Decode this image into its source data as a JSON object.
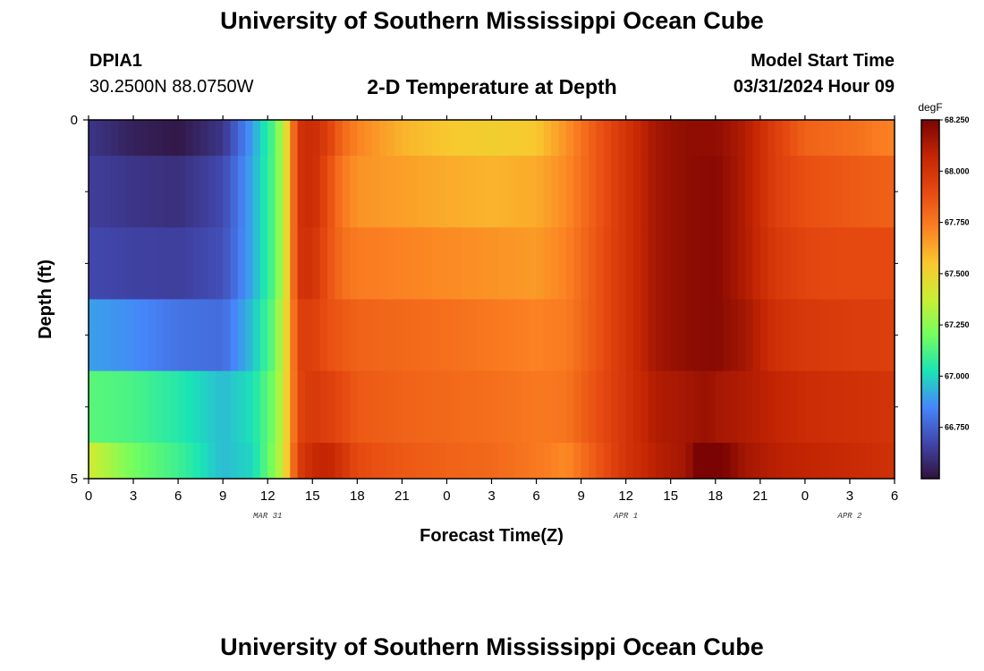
{
  "header": {
    "title": "University of Southern Mississippi Ocean Cube",
    "station_id": "DPIA1",
    "coordinates": "30.2500N  88.0750W",
    "subtitle": "2-D Temperature at Depth",
    "start_label": "Model Start Time",
    "start_value": "03/31/2024 Hour 09"
  },
  "footer": {
    "title": "University of Southern Mississippi Ocean Cube"
  },
  "chart_data": {
    "type": "heatmap",
    "title": "2-D Temperature at Depth",
    "xlabel": "Forecast Time(Z)",
    "ylabel": "Depth (ft)",
    "x_hours": [
      0,
      54
    ],
    "x_ticks": [
      {
        "hour": 0,
        "label": "0"
      },
      {
        "hour": 3,
        "label": "3"
      },
      {
        "hour": 6,
        "label": "6"
      },
      {
        "hour": 9,
        "label": "9"
      },
      {
        "hour": 12,
        "label": "12"
      },
      {
        "hour": 15,
        "label": "15"
      },
      {
        "hour": 18,
        "label": "18"
      },
      {
        "hour": 21,
        "label": "21"
      },
      {
        "hour": 24,
        "label": "0"
      },
      {
        "hour": 27,
        "label": "3"
      },
      {
        "hour": 30,
        "label": "6"
      },
      {
        "hour": 33,
        "label": "9"
      },
      {
        "hour": 36,
        "label": "12"
      },
      {
        "hour": 39,
        "label": "15"
      },
      {
        "hour": 42,
        "label": "18"
      },
      {
        "hour": 45,
        "label": "21"
      },
      {
        "hour": 48,
        "label": "0"
      },
      {
        "hour": 51,
        "label": "3"
      },
      {
        "hour": 54,
        "label": "6"
      }
    ],
    "date_labels": [
      {
        "hour": 12,
        "label": "MAR 31"
      },
      {
        "hour": 36,
        "label": "APR 1"
      },
      {
        "hour": 51,
        "label": "APR 2"
      }
    ],
    "ylim": [
      0,
      5
    ],
    "y_tick_labels": [
      {
        "depth": 0,
        "label": "0"
      },
      {
        "depth": 5,
        "label": "5"
      }
    ],
    "y_minor_ticks": [
      1,
      2,
      3,
      4
    ],
    "depth_layers": [
      {
        "from": 0.0,
        "to": 0.5,
        "profile": [
          [
            0,
            66.62
          ],
          [
            3,
            66.55
          ],
          [
            6,
            66.52
          ],
          [
            9,
            66.62
          ],
          [
            11,
            66.9
          ],
          [
            12.5,
            67.15
          ],
          [
            13,
            67.35
          ],
          [
            13.5,
            67.6
          ],
          [
            14,
            68.0
          ],
          [
            15,
            68.05
          ],
          [
            16,
            67.95
          ],
          [
            17,
            67.8
          ],
          [
            18,
            67.72
          ],
          [
            21,
            67.6
          ],
          [
            24,
            67.55
          ],
          [
            27,
            67.52
          ],
          [
            30,
            67.55
          ],
          [
            32,
            67.68
          ],
          [
            34,
            67.85
          ],
          [
            36,
            68.0
          ],
          [
            38,
            68.15
          ],
          [
            40,
            68.2
          ],
          [
            42,
            68.2
          ],
          [
            44,
            68.12
          ],
          [
            46,
            67.95
          ],
          [
            48,
            67.82
          ],
          [
            51,
            67.78
          ],
          [
            54,
            67.72
          ]
        ]
      },
      {
        "from": 0.5,
        "to": 1.5,
        "profile": [
          [
            0,
            66.65
          ],
          [
            3,
            66.62
          ],
          [
            6,
            66.6
          ],
          [
            9,
            66.68
          ],
          [
            11,
            66.92
          ],
          [
            12.5,
            67.15
          ],
          [
            13,
            67.35
          ],
          [
            13.5,
            67.6
          ],
          [
            14,
            68.0
          ],
          [
            15,
            68.05
          ],
          [
            16,
            67.9
          ],
          [
            17,
            67.75
          ],
          [
            18,
            67.68
          ],
          [
            21,
            67.65
          ],
          [
            24,
            67.62
          ],
          [
            27,
            67.6
          ],
          [
            30,
            67.62
          ],
          [
            32,
            67.7
          ],
          [
            34,
            67.85
          ],
          [
            36,
            68.0
          ],
          [
            38,
            68.15
          ],
          [
            40,
            68.2
          ],
          [
            42,
            68.22
          ],
          [
            44,
            68.12
          ],
          [
            46,
            67.95
          ],
          [
            48,
            67.88
          ],
          [
            51,
            67.85
          ],
          [
            54,
            67.82
          ]
        ]
      },
      {
        "from": 1.5,
        "to": 2.5,
        "profile": [
          [
            0,
            66.68
          ],
          [
            3,
            66.66
          ],
          [
            6,
            66.65
          ],
          [
            9,
            66.7
          ],
          [
            11,
            66.92
          ],
          [
            12.5,
            67.15
          ],
          [
            13,
            67.35
          ],
          [
            13.5,
            67.6
          ],
          [
            14,
            68.0
          ],
          [
            15,
            68.02
          ],
          [
            16,
            67.88
          ],
          [
            17,
            67.78
          ],
          [
            18,
            67.74
          ],
          [
            21,
            67.72
          ],
          [
            24,
            67.7
          ],
          [
            27,
            67.68
          ],
          [
            30,
            67.66
          ],
          [
            32,
            67.72
          ],
          [
            34,
            67.86
          ],
          [
            36,
            68.0
          ],
          [
            38,
            68.15
          ],
          [
            40,
            68.2
          ],
          [
            42,
            68.22
          ],
          [
            44,
            68.12
          ],
          [
            46,
            67.98
          ],
          [
            48,
            67.92
          ],
          [
            51,
            67.9
          ],
          [
            54,
            67.9
          ]
        ]
      },
      {
        "from": 2.5,
        "to": 3.5,
        "profile": [
          [
            0,
            66.9
          ],
          [
            3,
            66.86
          ],
          [
            6,
            66.8
          ],
          [
            9,
            66.78
          ],
          [
            11,
            66.96
          ],
          [
            12.5,
            67.18
          ],
          [
            13,
            67.4
          ],
          [
            13.5,
            67.6
          ],
          [
            14,
            67.95
          ],
          [
            15,
            67.95
          ],
          [
            16,
            67.88
          ],
          [
            17,
            67.85
          ],
          [
            18,
            67.82
          ],
          [
            21,
            67.8
          ],
          [
            24,
            67.78
          ],
          [
            27,
            67.75
          ],
          [
            30,
            67.72
          ],
          [
            32,
            67.74
          ],
          [
            34,
            67.86
          ],
          [
            36,
            68.0
          ],
          [
            38,
            68.15
          ],
          [
            40,
            68.2
          ],
          [
            42,
            68.22
          ],
          [
            44,
            68.15
          ],
          [
            46,
            68.02
          ],
          [
            48,
            67.98
          ],
          [
            51,
            67.96
          ],
          [
            54,
            67.95
          ]
        ]
      },
      {
        "from": 3.5,
        "to": 4.5,
        "profile": [
          [
            0,
            67.15
          ],
          [
            3,
            67.12
          ],
          [
            6,
            67.05
          ],
          [
            9,
            66.95
          ],
          [
            11,
            67.02
          ],
          [
            12.5,
            67.22
          ],
          [
            13,
            67.4
          ],
          [
            13.5,
            67.62
          ],
          [
            14,
            67.92
          ],
          [
            15,
            67.98
          ],
          [
            16,
            67.95
          ],
          [
            17,
            67.9
          ],
          [
            18,
            67.85
          ],
          [
            21,
            67.82
          ],
          [
            24,
            67.8
          ],
          [
            27,
            67.78
          ],
          [
            30,
            67.75
          ],
          [
            32,
            67.76
          ],
          [
            34,
            67.88
          ],
          [
            36,
            68.0
          ],
          [
            38,
            68.12
          ],
          [
            40,
            68.15
          ],
          [
            41.5,
            68.18
          ],
          [
            42,
            68.15
          ],
          [
            44,
            68.12
          ],
          [
            46,
            68.08
          ],
          [
            48,
            68.04
          ],
          [
            51,
            68.02
          ],
          [
            54,
            68.0
          ]
        ]
      },
      {
        "from": 4.5,
        "to": 5.0,
        "profile": [
          [
            0,
            67.4
          ],
          [
            3,
            67.2
          ],
          [
            6,
            67.1
          ],
          [
            9,
            66.95
          ],
          [
            11,
            67.0
          ],
          [
            12.5,
            67.25
          ],
          [
            13,
            67.4
          ],
          [
            13.5,
            67.65
          ],
          [
            14,
            67.95
          ],
          [
            15,
            68.05
          ],
          [
            16,
            68.08
          ],
          [
            17,
            68.0
          ],
          [
            18,
            67.9
          ],
          [
            21,
            67.85
          ],
          [
            24,
            67.82
          ],
          [
            27,
            67.8
          ],
          [
            30,
            67.75
          ],
          [
            32,
            67.7
          ],
          [
            34,
            67.85
          ],
          [
            36,
            68.0
          ],
          [
            38,
            68.1
          ],
          [
            40,
            68.15
          ],
          [
            41.5,
            68.35
          ],
          [
            42.5,
            68.25
          ],
          [
            44,
            68.15
          ],
          [
            46,
            68.1
          ],
          [
            48,
            68.08
          ],
          [
            51,
            68.05
          ],
          [
            54,
            68.02
          ]
        ]
      }
    ],
    "colorbar": {
      "unit": "degF",
      "min": 66.5,
      "max": 68.25,
      "tick_labels": [
        {
          "value": 66.75,
          "label": "66.750"
        },
        {
          "value": 67.0,
          "label": "67.000"
        },
        {
          "value": 67.25,
          "label": "67.250"
        },
        {
          "value": 67.5,
          "label": "67.500"
        },
        {
          "value": 67.75,
          "label": "67.750"
        },
        {
          "value": 68.0,
          "label": "68.000"
        },
        {
          "value": 68.25,
          "label": "68.250"
        }
      ],
      "colors": [
        "#30123b",
        "#4146ab",
        "#4686fb",
        "#1ae4b6",
        "#72fe5e",
        "#c8ef34",
        "#f9c82f",
        "#fb8022",
        "#e64910",
        "#c42503",
        "#7a0403"
      ]
    }
  }
}
